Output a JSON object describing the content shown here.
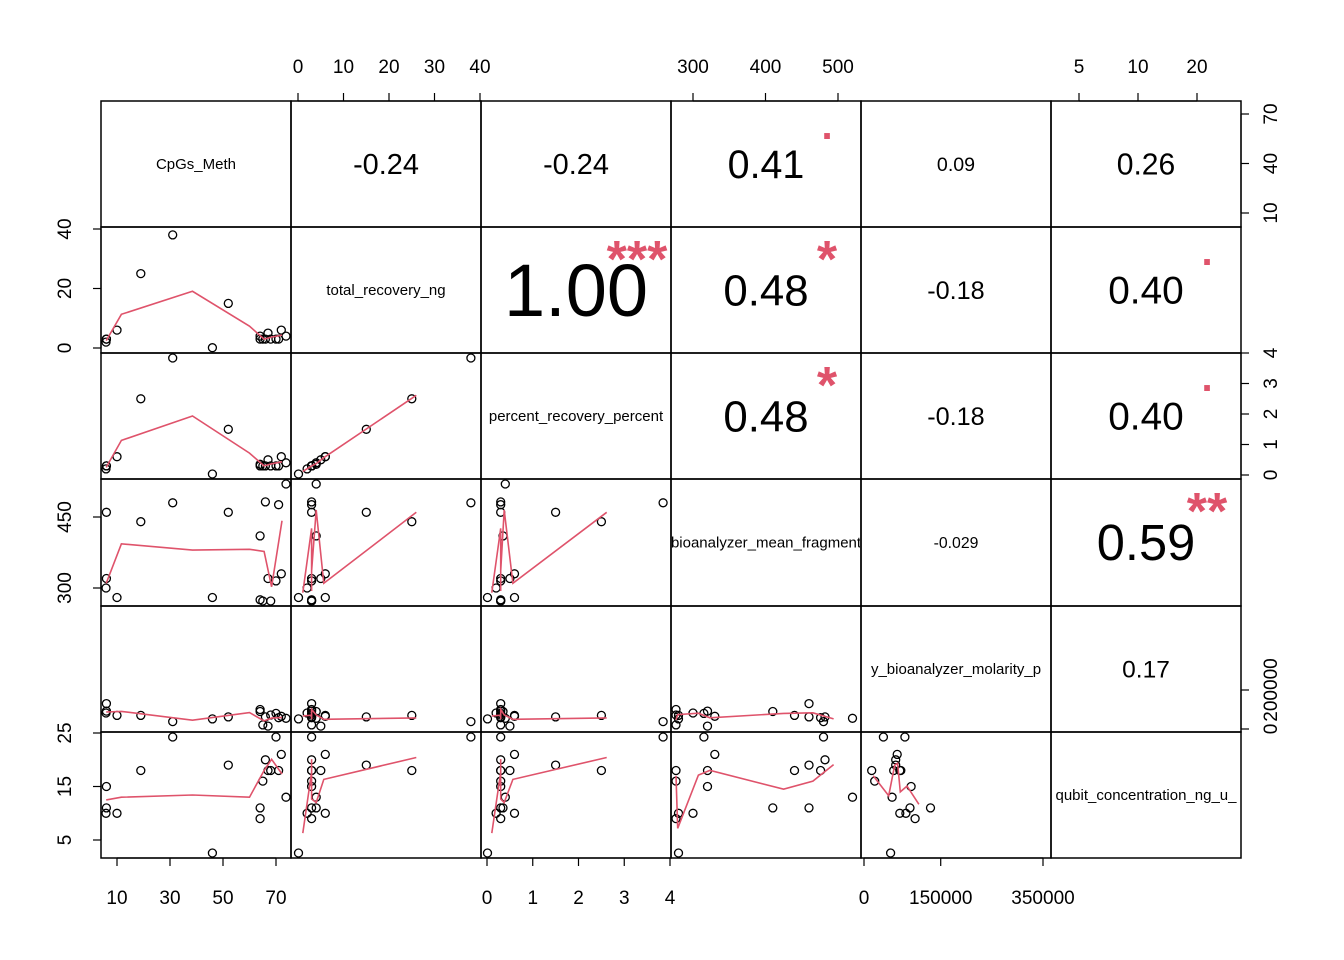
{
  "colors": {
    "smooth_line": "#DF536B",
    "stars": "#DF536B",
    "points": "#000000"
  },
  "chart_data": {
    "type": "scatter",
    "layout": "pairs-matrix (chart.Correlation)",
    "variables": [
      {
        "name": "CpGs_Meth",
        "values": [
          71,
          66,
          6,
          70,
          65,
          64,
          68,
          74,
          31,
          19,
          64,
          67,
          10,
          6,
          52,
          46,
          5,
          72
        ]
      },
      {
        "name": "total_recovery_ng",
        "values": [
          3,
          3,
          3,
          3,
          3,
          4,
          3,
          4,
          38,
          25,
          3,
          5,
          6,
          3,
          15,
          0.1,
          2,
          6
        ]
      },
      {
        "name": "percent_recovery_percent",
        "values": [
          0.3,
          0.3,
          0.3,
          0.3,
          0.3,
          0.35,
          0.3,
          0.4,
          3.85,
          2.5,
          0.3,
          0.5,
          0.6,
          0.3,
          1.5,
          0.01,
          0.2,
          0.6
        ]
      },
      {
        "name": "bioanalyzer_mean_fragment",
        "values": [
          476,
          482,
          320,
          315,
          263,
          410,
          252,
          520,
          480,
          440,
          275,
          320,
          280,
          460,
          460,
          280,
          300,
          330
        ]
      },
      {
        "name": "bioanalyzer_molarity_pM",
        "values": [
          58000,
          62000,
          92000,
          80000,
          21000,
          90000,
          72000,
          55000,
          38000,
          70000,
          100000,
          15000,
          70000,
          130000,
          62000,
          52000,
          82000,
          65000
        ]
      },
      {
        "name": "qubit_concentration_ng_ul",
        "values": [
          18,
          20,
          15,
          25,
          16,
          11,
          18,
          13,
          25,
          18,
          9,
          18,
          10,
          11,
          19,
          2,
          10,
          21
        ]
      }
    ],
    "axes": {
      "top_ticks": [
        {
          "col": 1,
          "labels": [
            "0",
            "10",
            "20",
            "30",
            "40"
          ]
        },
        {
          "col": 3,
          "labels": [
            "300",
            "400",
            "500"
          ]
        },
        {
          "col": 5,
          "labels": [
            "5",
            "10",
            "20"
          ]
        }
      ],
      "bottom_ticks": [
        {
          "col": 0,
          "labels": [
            "10",
            "30",
            "50",
            "70"
          ]
        },
        {
          "col": 2,
          "labels": [
            "0",
            "1",
            "2",
            "3",
            "4"
          ]
        },
        {
          "col": 4,
          "labels": [
            "0",
            "150000",
            "350000"
          ]
        }
      ],
      "left_ticks": [
        {
          "row": 1,
          "labels": [
            "0",
            "20",
            "40"
          ]
        },
        {
          "row": 3,
          "labels": [
            "300",
            "450"
          ]
        },
        {
          "row": 5,
          "labels": [
            "5",
            "15",
            "25"
          ]
        }
      ],
      "right_ticks": [
        {
          "row": 0,
          "labels": [
            "10",
            "40",
            "70"
          ]
        },
        {
          "row": 2,
          "labels": [
            "0",
            "1",
            "2",
            "3",
            "4"
          ]
        },
        {
          "row": 4,
          "labels": [
            "0",
            "200000"
          ]
        }
      ]
    },
    "diagonal_labels": [
      "CpGs_Meth",
      "total_recovery_ng",
      "percent_recovery_percent",
      "bioanalyzer_mean_fragment",
      "y_bioanalyzer_molarity_p",
      "qubit_concentration_ng_u_"
    ],
    "correlations": [
      {
        "row": 0,
        "col": 1,
        "r": "-0.24",
        "stars": ""
      },
      {
        "row": 0,
        "col": 2,
        "r": "-0.24",
        "stars": ""
      },
      {
        "row": 0,
        "col": 3,
        "r": "0.41",
        "stars": "."
      },
      {
        "row": 0,
        "col": 4,
        "r": "0.09",
        "stars": ""
      },
      {
        "row": 0,
        "col": 5,
        "r": "0.26",
        "stars": ""
      },
      {
        "row": 1,
        "col": 2,
        "r": "1.00",
        "stars": "***"
      },
      {
        "row": 1,
        "col": 3,
        "r": "0.48",
        "stars": "*"
      },
      {
        "row": 1,
        "col": 4,
        "r": "-0.18",
        "stars": ""
      },
      {
        "row": 1,
        "col": 5,
        "r": "0.40",
        "stars": "."
      },
      {
        "row": 2,
        "col": 3,
        "r": "0.48",
        "stars": "*"
      },
      {
        "row": 2,
        "col": 4,
        "r": "-0.18",
        "stars": ""
      },
      {
        "row": 2,
        "col": 5,
        "r": "0.40",
        "stars": "."
      },
      {
        "row": 3,
        "col": 4,
        "r": "-0.029",
        "stars": ""
      },
      {
        "row": 3,
        "col": 5,
        "r": "0.59",
        "stars": "**"
      },
      {
        "row": 4,
        "col": 5,
        "r": "0.17",
        "stars": ""
      }
    ]
  }
}
